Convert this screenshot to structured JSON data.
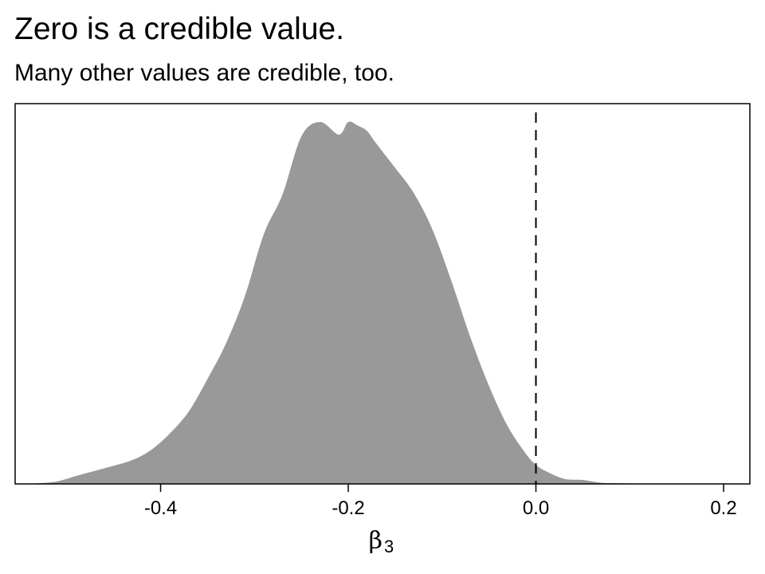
{
  "title": "Zero is a credible value.",
  "subtitle": "Many other values are credible, too.",
  "chart_data": {
    "type": "area",
    "title": "Zero is a credible value.",
    "subtitle": "Many other values are credible, too.",
    "xlabel_symbol": "β",
    "xlabel_subscript": "3",
    "ylabel": "",
    "xlim": [
      -0.555,
      0.228
    ],
    "ylim": [
      0,
      1.05
    ],
    "x_ticks": [
      -0.4,
      -0.2,
      0.0,
      0.2
    ],
    "x_tick_labels": [
      "-0.4",
      "-0.2",
      "0.0",
      "0.2"
    ],
    "y_ticks_shown": false,
    "fill_color": "#999999",
    "reference_line": {
      "x": 0.0,
      "style": "dashed",
      "color": "#000000"
    },
    "series": [
      {
        "x": [
          -0.54,
          -0.53,
          -0.51,
          -0.49,
          -0.47,
          -0.45,
          -0.43,
          -0.41,
          -0.39,
          -0.37,
          -0.35,
          -0.33,
          -0.31,
          -0.29,
          -0.27,
          -0.25,
          -0.23,
          -0.21,
          -0.2,
          -0.19,
          -0.18,
          -0.17,
          -0.15,
          -0.13,
          -0.11,
          -0.09,
          -0.07,
          -0.05,
          -0.03,
          -0.01,
          0.0,
          0.01,
          0.03,
          0.05,
          0.07,
          0.09,
          0.11,
          0.13,
          0.15,
          0.17
        ],
        "y": [
          0.0,
          0.002,
          0.007,
          0.022,
          0.036,
          0.05,
          0.066,
          0.094,
          0.14,
          0.2,
          0.29,
          0.39,
          0.52,
          0.69,
          0.8,
          0.96,
          1.0,
          0.965,
          1.0,
          0.99,
          0.975,
          0.94,
          0.873,
          0.803,
          0.701,
          0.56,
          0.406,
          0.271,
          0.159,
          0.081,
          0.053,
          0.036,
          0.014,
          0.011,
          0.003,
          0.002,
          0.0008,
          0.0003,
          0.0001,
          0.0
        ]
      }
    ]
  }
}
